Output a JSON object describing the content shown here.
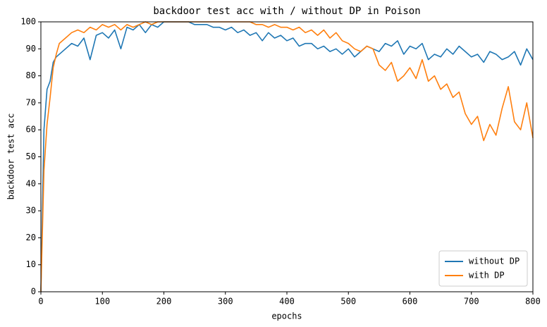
{
  "chart_data": {
    "type": "line",
    "title": "backdoor test acc with / without DP in Poison",
    "x_label": "epochs",
    "y_label": "backdoor test acc",
    "x": [
      0,
      5,
      10,
      15,
      20,
      25,
      30,
      40,
      50,
      60,
      70,
      80,
      90,
      100,
      110,
      120,
      130,
      140,
      150,
      160,
      170,
      180,
      190,
      200,
      210,
      220,
      230,
      240,
      250,
      260,
      270,
      280,
      290,
      300,
      310,
      320,
      330,
      340,
      350,
      360,
      370,
      380,
      390,
      400,
      410,
      420,
      430,
      440,
      450,
      460,
      470,
      480,
      490,
      500,
      510,
      520,
      530,
      540,
      550,
      560,
      570,
      580,
      590,
      600,
      610,
      620,
      630,
      640,
      650,
      660,
      670,
      680,
      690,
      700,
      710,
      720,
      730,
      740,
      750,
      760,
      770,
      780,
      790,
      800
    ],
    "series": [
      {
        "name": "without DP",
        "color": "#1f77b4",
        "values": [
          0,
          60,
          75,
          78,
          85,
          87,
          88,
          90,
          92,
          91,
          94,
          86,
          95,
          96,
          94,
          97,
          90,
          98,
          97,
          99,
          96,
          99,
          98,
          100,
          100,
          100,
          100,
          100,
          99,
          99,
          99,
          98,
          98,
          97,
          98,
          96,
          97,
          95,
          96,
          93,
          96,
          94,
          95,
          93,
          94,
          91,
          92,
          92,
          90,
          91,
          89,
          90,
          88,
          90,
          87,
          89,
          91,
          90,
          89,
          92,
          91,
          93,
          88,
          91,
          90,
          92,
          86,
          88,
          87,
          90,
          88,
          91,
          89,
          87,
          88,
          85,
          89,
          88,
          86,
          87,
          89,
          84,
          90,
          86
        ]
      },
      {
        "name": "with DP",
        "color": "#ff7f0e",
        "values": [
          0,
          45,
          62,
          72,
          83,
          88,
          92,
          94,
          96,
          97,
          96,
          98,
          97,
          99,
          98,
          99,
          97,
          99,
          98,
          99,
          100,
          99,
          100,
          100,
          100,
          100,
          100,
          100,
          100,
          100,
          100,
          100,
          100,
          100,
          100,
          100,
          100,
          100,
          99,
          99,
          98,
          99,
          98,
          98,
          97,
          98,
          96,
          97,
          95,
          97,
          94,
          96,
          93,
          92,
          90,
          89,
          91,
          90,
          84,
          82,
          85,
          78,
          80,
          83,
          79,
          86,
          78,
          80,
          75,
          77,
          72,
          74,
          66,
          62,
          65,
          56,
          62,
          58,
          68,
          76,
          63,
          60,
          70,
          57
        ]
      }
    ],
    "xlim": [
      0,
      800
    ],
    "ylim": [
      0,
      100
    ],
    "xticks": [
      0,
      100,
      200,
      300,
      400,
      500,
      600,
      700,
      800
    ],
    "yticks": [
      0,
      10,
      20,
      30,
      40,
      50,
      60,
      70,
      80,
      90,
      100
    ],
    "grid": false,
    "legend": "lower right"
  }
}
